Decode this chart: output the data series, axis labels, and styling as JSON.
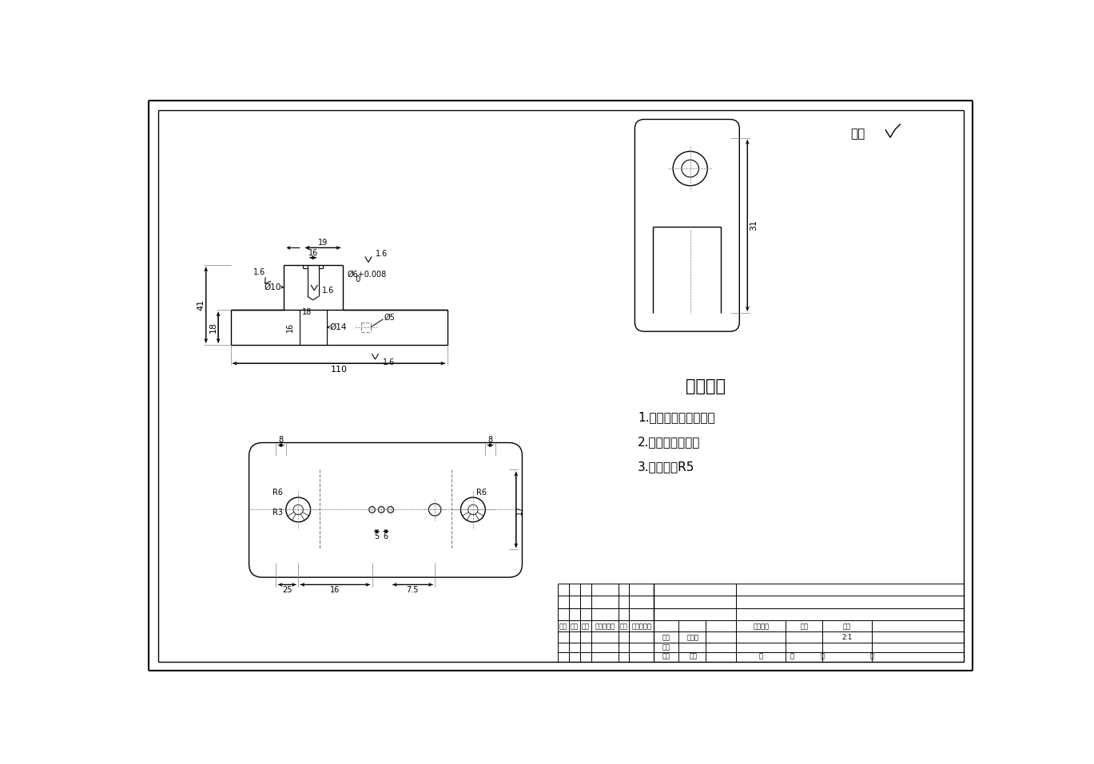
{
  "bg_color": "#ffffff",
  "line_color": "#000000",
  "title_text": "技术要求",
  "tech_req": [
    "1.零件须去除氧化皮。",
    "2.去除毛刺飞边。",
    "3.未注圆角R5"
  ],
  "surface_text": "其余",
  "table_header": [
    "标记",
    "处数",
    "分区",
    "更改文件号",
    "签名",
    "年、月、日"
  ],
  "table_rows": [
    "设计",
    "审核",
    "工艺"
  ],
  "table_right_labels": [
    "标准化",
    "批准",
    "阶段标记",
    "重量",
    "比例"
  ],
  "scale_text": "2:1",
  "foot_text": [
    "共",
    "张",
    "第",
    "张"
  ],
  "dim_110": "110",
  "dim_41": "41",
  "dim_18": "18",
  "dim_19": "19",
  "dim_16": "16",
  "dim_31": "31",
  "dim_25": "25",
  "dim_16b": "16",
  "dim_75": "7.5",
  "dim_8a": "8",
  "dim_8b": "8",
  "dim_5": "5",
  "dim_6": "6",
  "dim_17": "17",
  "label_o10": "Ø10",
  "label_o14": "Ø14",
  "label_o6": "Ø6+0.008\n    0",
  "label_o5": "Ø5",
  "label_16": "16",
  "label_18b": "18",
  "label_16c": "1.6",
  "label_R6a": "R6",
  "label_R3": "R3",
  "label_R6b": "R6"
}
